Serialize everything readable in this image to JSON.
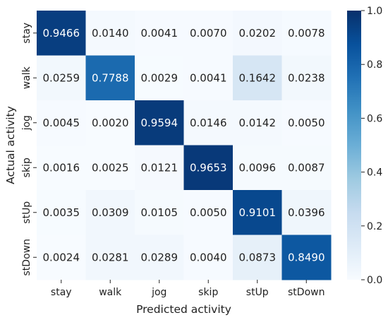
{
  "chart_data": {
    "type": "heatmap",
    "title": "",
    "xlabel": "Predicted activity",
    "ylabel": "Actual activity",
    "x_categories": [
      "stay",
      "walk",
      "jog",
      "skip",
      "stUp",
      "stDown"
    ],
    "y_categories": [
      "stay",
      "walk",
      "jog",
      "skip",
      "stUp",
      "stDown"
    ],
    "values": [
      [
        0.9466,
        0.014,
        0.0041,
        0.007,
        0.0202,
        0.0078
      ],
      [
        0.0259,
        0.7788,
        0.0029,
        0.0041,
        0.1642,
        0.0238
      ],
      [
        0.0045,
        0.002,
        0.9594,
        0.0146,
        0.0142,
        0.005
      ],
      [
        0.0016,
        0.0025,
        0.0121,
        0.9653,
        0.0096,
        0.0087
      ],
      [
        0.0035,
        0.0309,
        0.0105,
        0.005,
        0.9101,
        0.0396
      ],
      [
        0.0024,
        0.0281,
        0.0289,
        0.004,
        0.0873,
        0.849
      ]
    ],
    "value_format": "4 decimals",
    "colormap": "Blues",
    "vmin": 0.0,
    "vmax": 1.0,
    "colorbar": {
      "ticks": [
        "0.0",
        "0.2",
        "0.4",
        "0.6",
        "0.8",
        "1.0"
      ],
      "position": "right"
    },
    "grid": false,
    "colors": {
      "low": "#f7fbff",
      "high": "#08306b",
      "text_dark": "#222222",
      "text_light": "#ffffff"
    }
  }
}
